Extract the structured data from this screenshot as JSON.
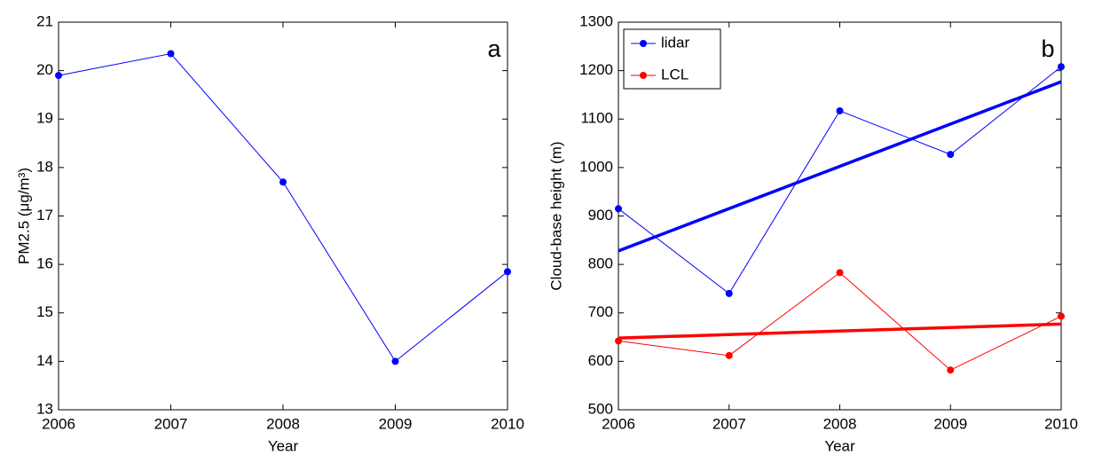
{
  "chart_data": [
    {
      "type": "line",
      "label": "a",
      "xlabel": "Year",
      "ylabel": "PM2.5 (μg/m³)",
      "x": [
        2006,
        2007,
        2008,
        2009,
        2010
      ],
      "values": [
        19.9,
        20.35,
        17.7,
        14.0,
        15.85
      ],
      "color": "#0000ff",
      "xlim": [
        2006,
        2010
      ],
      "xticks": [
        2006,
        2007,
        2008,
        2009,
        2010
      ],
      "ylim": [
        13,
        21
      ],
      "yticks": [
        13,
        14,
        15,
        16,
        17,
        18,
        19,
        20,
        21
      ]
    },
    {
      "type": "line",
      "label": "b",
      "xlabel": "Year",
      "ylabel": "Cloud-base height (m)",
      "x": [
        2006,
        2007,
        2008,
        2009,
        2010
      ],
      "series": [
        {
          "name": "lidar",
          "color": "#0000ff",
          "values": [
            915,
            740,
            1117,
            1027,
            1208
          ],
          "trend": [
            828,
            1177
          ]
        },
        {
          "name": "LCL",
          "color": "#ff0000",
          "values": [
            642,
            612,
            783,
            582,
            693
          ],
          "trend": [
            648,
            677
          ]
        }
      ],
      "xlim": [
        2006,
        2010
      ],
      "xticks": [
        2006,
        2007,
        2008,
        2009,
        2010
      ],
      "ylim": [
        500,
        1300
      ],
      "yticks": [
        500,
        600,
        700,
        800,
        900,
        1000,
        1100,
        1200,
        1300
      ],
      "legend": "upper left"
    }
  ]
}
